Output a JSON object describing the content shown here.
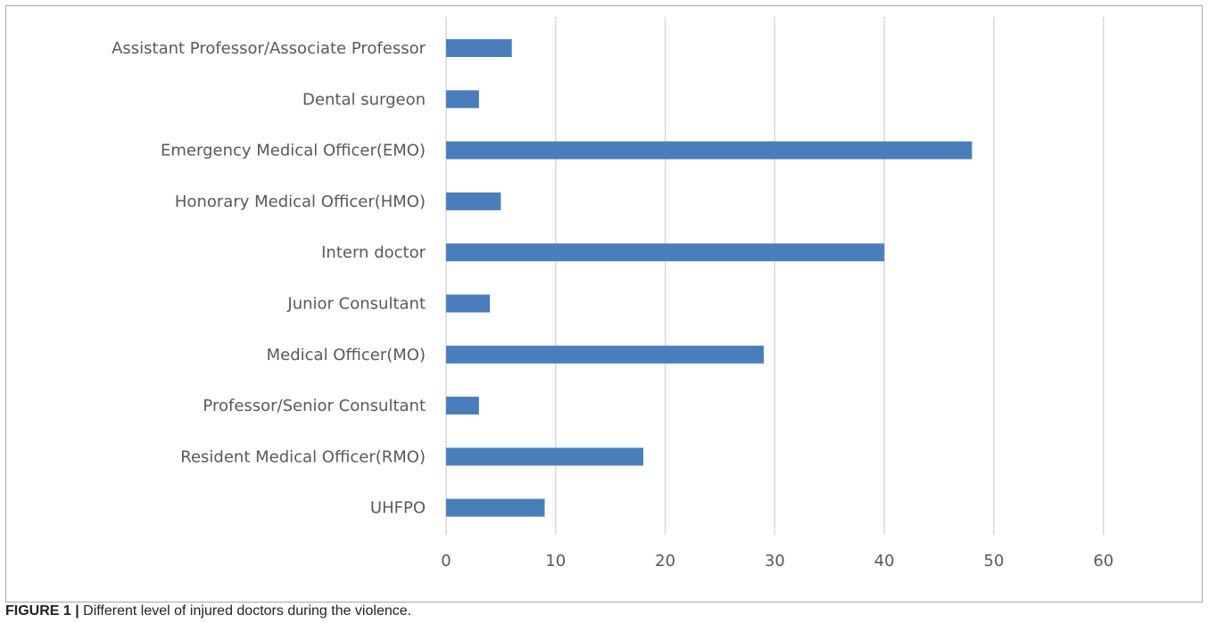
{
  "chart_data": {
    "type": "bar",
    "orientation": "horizontal",
    "categories": [
      "Assistant Professor/Associate Professor",
      "Dental surgeon",
      "Emergency Medical Officer(EMO)",
      "Honorary Medical Officer(HMO)",
      "Intern doctor",
      "Junior Consultant",
      "Medical Officer(MO)",
      "Professor/Senior Consultant",
      "Resident Medical Officer(RMO)",
      "UHFPO"
    ],
    "values": [
      6,
      3,
      48,
      5,
      40,
      4,
      29,
      3,
      18,
      9
    ],
    "xlim": [
      0,
      60
    ],
    "xticks": [
      "0",
      "10",
      "20",
      "30",
      "40",
      "50",
      "60"
    ],
    "grid": true,
    "bar_color": "#4a7ebb",
    "grid_color": "#d9d9d9",
    "label_color": "#595959"
  },
  "caption": {
    "label": "FIGURE 1 |",
    "text": " Different level of injured doctors during the violence."
  }
}
